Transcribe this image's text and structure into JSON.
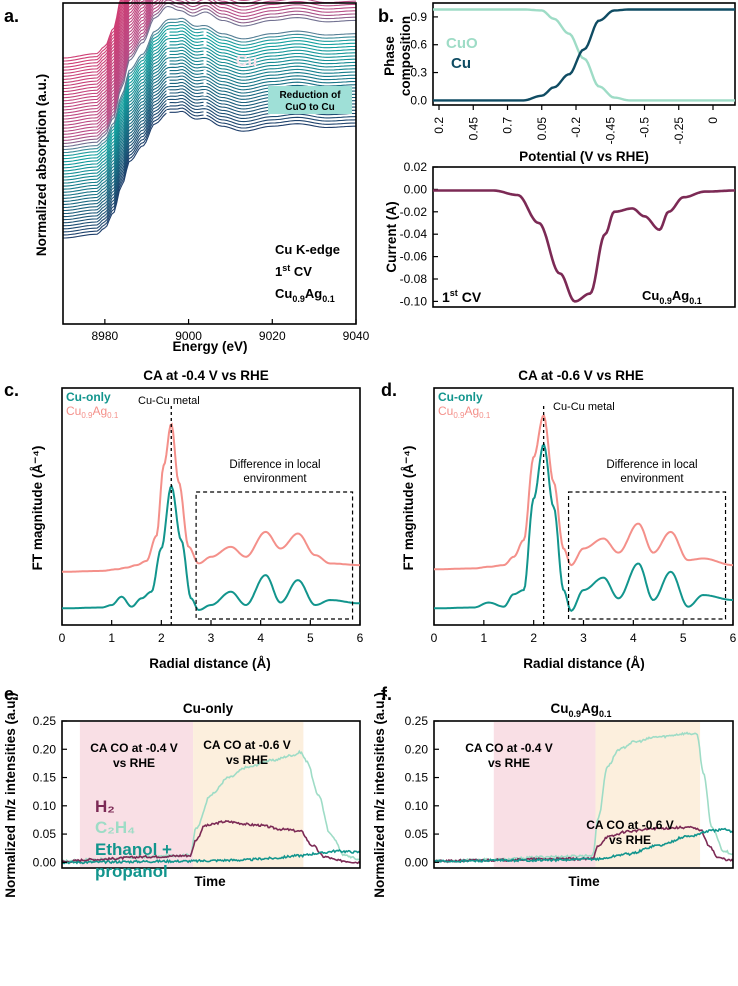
{
  "colors": {
    "teal": "#12958d",
    "navy": "#0f4c63",
    "mint": "#9edcc6",
    "salmon": "#f4908a",
    "maroon": "#7c2a55",
    "pink": "#cf3e74",
    "pinkRegion": "#f9dfe5",
    "orangeRegion": "#fcefdd"
  },
  "panels": {
    "a": {
      "label": "a.",
      "tag_cu": "Cu",
      "tag_cuo": "CuO",
      "box_line1": "Reduction of",
      "box_line2": "CuO to Cu",
      "info1": "Cu K-edge",
      "info2_main": "1",
      "info2_sup": "st",
      "info2_tail": " CV",
      "info3_main": "Cu",
      "info3_sub1": "0.9",
      "info3_mid": "Ag",
      "info3_sub2": "0.1"
    },
    "b": {
      "label": "b.",
      "legend_cuo": "CuO",
      "legend_cu": "Cu",
      "cv_main": "1",
      "cv_sup": "st",
      "cv_tail": " CV",
      "sample_main": "Cu",
      "sample_sub1": "0.9",
      "sample_mid": "Ag",
      "sample_sub2": "0.1"
    },
    "c": {
      "label": "c.",
      "title": "CA at -0.4 V vs RHE",
      "legend_cu": "Cu-only",
      "legend_ag_main": "Cu",
      "legend_ag_sub1": "0.9",
      "legend_ag_mid": "Ag",
      "legend_ag_sub2": "0.1",
      "peak_label": "Cu-Cu metal",
      "box_line1": "Difference in local",
      "box_line2": "environment"
    },
    "d": {
      "label": "d.",
      "title": "CA at -0.6 V vs RHE",
      "legend_cu": "Cu-only",
      "legend_ag_main": "Cu",
      "legend_ag_sub1": "0.9",
      "legend_ag_mid": "Ag",
      "legend_ag_sub2": "0.1",
      "peak_label": "Cu-Cu metal",
      "box_line1": "Difference in local",
      "box_line2": "environment"
    },
    "e": {
      "label": "e.",
      "title": "Cu-only",
      "region1_line1": "CA CO at -0.4 V",
      "region1_line2": "vs RHE",
      "region2_line1": "CA CO at -0.6 V",
      "region2_line2": "vs RHE",
      "legend_h2": "H₂",
      "legend_c2h4": "C₂H₄",
      "legend_eth1": "Ethanol +",
      "legend_eth2": "propanol"
    },
    "f": {
      "label": "f.",
      "title_main": "Cu",
      "title_sub1": "0.9",
      "title_mid": "Ag",
      "title_sub2": "0.1",
      "region1_line1": "CA CO at -0.4 V",
      "region1_line2": "vs RHE",
      "region2_line1": "CA CO at -0.6 V",
      "region2_line2": "vs RHE"
    }
  },
  "chart_data": [
    {
      "panel": "a",
      "type": "line",
      "xlabel": "Energy (eV)",
      "ylabel": "Normalized absorption (a.u.)",
      "xlim": [
        8970,
        9040
      ],
      "x_ticks": [
        8980,
        9000,
        9020,
        9040
      ],
      "y_ticks": [],
      "series_count": 60,
      "description_series": "stacked XANES spectra, color gradient navy to teal (CuO) to pink (Cu)",
      "edge_energy": 8985,
      "dashed_markers": [
        8996,
        8999,
        9003
      ]
    },
    {
      "panel": "b-top",
      "type": "line",
      "ylabel": "Phase composition",
      "ylim": [
        -0.05,
        1.05
      ],
      "y_ticks": [
        0.0,
        0.3,
        0.6,
        0.9
      ],
      "x_tick_labels": [
        "0.2",
        "0.45",
        "0.7",
        "0.05",
        "-0.2",
        "-0.45",
        "-0.5",
        "-0.25",
        "0"
      ],
      "xlabel": "Potential (V vs RHE)",
      "series": [
        {
          "name": "CuO",
          "x": [
            0,
            0.3,
            0.36,
            0.4,
            0.45,
            0.5,
            0.55,
            0.6,
            0.65,
            1
          ],
          "y": [
            0.98,
            0.98,
            0.97,
            0.88,
            0.72,
            0.45,
            0.15,
            0.03,
            0.0,
            0.0
          ]
        },
        {
          "name": "Cu",
          "x": [
            0,
            0.3,
            0.36,
            0.4,
            0.45,
            0.5,
            0.55,
            0.6,
            0.65,
            1
          ],
          "y": [
            0.0,
            0.0,
            0.05,
            0.14,
            0.28,
            0.55,
            0.86,
            0.97,
            0.98,
            0.98
          ]
        }
      ]
    },
    {
      "panel": "b-bottom",
      "type": "line",
      "ylabel": "Current (A)",
      "ylim": [
        -0.105,
        0.02
      ],
      "y_ticks": [
        0.02,
        0.0,
        -0.02,
        -0.04,
        -0.06,
        -0.08,
        -0.1
      ],
      "series": [
        {
          "name": "",
          "x": [
            0,
            0.2,
            0.28,
            0.35,
            0.42,
            0.47,
            0.52,
            0.57,
            0.6,
            0.66,
            0.7,
            0.75,
            0.78,
            0.83,
            0.9,
            1
          ],
          "y": [
            -0.001,
            -0.001,
            -0.005,
            -0.03,
            -0.075,
            -0.1,
            -0.093,
            -0.04,
            -0.02,
            -0.017,
            -0.024,
            -0.036,
            -0.02,
            -0.007,
            -0.002,
            -0.001
          ]
        }
      ]
    },
    {
      "panel": "c",
      "type": "line",
      "title": "CA at -0.4 V vs RHE",
      "xlabel": "Radial distance (Å)",
      "ylabel": "FT magnitude (Å⁻⁴)",
      "xlim": [
        0,
        6
      ],
      "x_ticks": [
        0,
        1,
        2,
        3,
        4,
        5,
        6
      ],
      "peak_x": 2.2,
      "box_x": [
        2.7,
        5.85
      ],
      "series": [
        {
          "name": "Cu-only",
          "x": [
            0,
            0.8,
            1.0,
            1.2,
            1.4,
            1.6,
            1.8,
            2.0,
            2.2,
            2.4,
            2.6,
            2.75,
            3.0,
            3.4,
            3.7,
            4.1,
            4.4,
            4.75,
            5.1,
            5.4,
            6.0
          ],
          "y": [
            0.08,
            0.09,
            0.12,
            0.22,
            0.1,
            0.2,
            0.28,
            0.8,
            1.55,
            0.9,
            0.2,
            0.06,
            0.12,
            0.28,
            0.12,
            0.48,
            0.15,
            0.42,
            0.12,
            0.18,
            0.14
          ]
        },
        {
          "name": "Cu0.9Ag0.1",
          "x": [
            0,
            0.8,
            1.1,
            1.3,
            1.5,
            1.7,
            1.9,
            2.05,
            2.2,
            2.35,
            2.55,
            2.75,
            3.0,
            3.4,
            3.7,
            4.1,
            4.4,
            4.75,
            5.1,
            5.4,
            6.0
          ],
          "y": [
            0.52,
            0.53,
            0.55,
            0.57,
            0.6,
            0.65,
            0.95,
            1.8,
            2.3,
            1.6,
            0.82,
            0.62,
            0.7,
            0.82,
            0.7,
            1.0,
            0.8,
            0.98,
            0.72,
            0.62,
            0.6
          ]
        }
      ]
    },
    {
      "panel": "d",
      "type": "line",
      "title": "CA at -0.6 V vs RHE",
      "xlabel": "Radial distance (Å)",
      "ylabel": "FT magnitude (Å⁻⁴)",
      "xlim": [
        0,
        6
      ],
      "x_ticks": [
        0,
        1,
        2,
        3,
        4,
        5,
        6
      ],
      "peak_x": 2.2,
      "box_x": [
        2.7,
        5.85
      ],
      "series": [
        {
          "name": "Cu-only",
          "x": [
            0,
            0.8,
            1.1,
            1.4,
            1.6,
            1.8,
            2.0,
            2.2,
            2.4,
            2.6,
            2.75,
            3.0,
            3.4,
            3.7,
            4.1,
            4.4,
            4.75,
            5.1,
            5.4,
            6.0
          ],
          "y": [
            0.08,
            0.09,
            0.15,
            0.1,
            0.25,
            0.3,
            1.4,
            2.05,
            1.3,
            0.3,
            0.05,
            0.3,
            0.45,
            0.2,
            0.62,
            0.18,
            0.52,
            0.1,
            0.24,
            0.18
          ]
        },
        {
          "name": "Cu0.9Ag0.1",
          "x": [
            0,
            0.8,
            1.1,
            1.4,
            1.6,
            1.8,
            2.0,
            2.2,
            2.4,
            2.6,
            2.75,
            3.0,
            3.4,
            3.7,
            4.1,
            4.4,
            4.75,
            5.1,
            5.4,
            6.0
          ],
          "y": [
            0.55,
            0.56,
            0.58,
            0.6,
            0.7,
            0.9,
            1.9,
            2.4,
            1.6,
            0.8,
            0.6,
            0.8,
            0.92,
            0.75,
            1.1,
            0.75,
            1.0,
            0.66,
            0.68,
            0.6
          ]
        }
      ]
    },
    {
      "panel": "e",
      "type": "line",
      "title": "Cu-only",
      "xlabel": "Time",
      "ylabel": "Normalized m/z intensities (a.u.)",
      "ylim": [
        -0.01,
        0.25
      ],
      "y_ticks": [
        0.0,
        0.05,
        0.1,
        0.15,
        0.2,
        0.25
      ],
      "regions": [
        [
          0.06,
          0.44
        ],
        [
          0.44,
          0.81
        ]
      ],
      "series": [
        {
          "name": "H₂",
          "x": [
            0,
            0.1,
            0.3,
            0.43,
            0.45,
            0.48,
            0.55,
            0.65,
            0.75,
            0.8,
            0.84,
            0.88,
            0.93,
            1
          ],
          "y": [
            0.001,
            0.005,
            0.01,
            0.012,
            0.04,
            0.065,
            0.072,
            0.066,
            0.058,
            0.055,
            0.03,
            0.01,
            0.003,
            0.0
          ]
        },
        {
          "name": "C₂H₄",
          "x": [
            0,
            0.1,
            0.3,
            0.43,
            0.45,
            0.5,
            0.56,
            0.62,
            0.7,
            0.78,
            0.8,
            0.82,
            0.86,
            0.9,
            0.95,
            1
          ],
          "y": [
            0.002,
            0.005,
            0.01,
            0.013,
            0.06,
            0.12,
            0.15,
            0.168,
            0.18,
            0.19,
            0.195,
            0.18,
            0.12,
            0.05,
            0.012,
            0.005
          ]
        },
        {
          "name": "Ethanol + propanol",
          "x": [
            0,
            0.4,
            0.6,
            0.7,
            0.8,
            0.86,
            0.92,
            1
          ],
          "y": [
            0.0,
            0.002,
            0.004,
            0.007,
            0.012,
            0.016,
            0.02,
            0.018
          ]
        }
      ]
    },
    {
      "panel": "f",
      "type": "line",
      "title": "Cu0.9Ag0.1",
      "xlabel": "Time",
      "ylabel": "Normalized m/z intensities (a.u.)",
      "ylim": [
        -0.01,
        0.25
      ],
      "y_ticks": [
        0.0,
        0.05,
        0.1,
        0.15,
        0.2,
        0.25
      ],
      "regions": [
        [
          0.2,
          0.54
        ],
        [
          0.54,
          0.89
        ]
      ],
      "series": [
        {
          "name": "H₂",
          "x": [
            0,
            0.2,
            0.4,
            0.53,
            0.55,
            0.58,
            0.65,
            0.75,
            0.85,
            0.89,
            0.92,
            0.95,
            1
          ],
          "y": [
            0.002,
            0.004,
            0.006,
            0.006,
            0.03,
            0.045,
            0.055,
            0.06,
            0.062,
            0.058,
            0.03,
            0.008,
            0.003
          ]
        },
        {
          "name": "C₂H₄",
          "x": [
            0,
            0.2,
            0.4,
            0.53,
            0.55,
            0.58,
            0.62,
            0.67,
            0.75,
            0.85,
            0.88,
            0.9,
            0.93,
            0.97,
            1
          ],
          "y": [
            0.002,
            0.005,
            0.01,
            0.012,
            0.08,
            0.17,
            0.2,
            0.213,
            0.222,
            0.228,
            0.226,
            0.16,
            0.06,
            0.02,
            0.015
          ]
        },
        {
          "name": "Ethanol + propanol",
          "x": [
            0,
            0.4,
            0.55,
            0.65,
            0.75,
            0.85,
            0.93,
            0.97,
            1
          ],
          "y": [
            0.002,
            0.004,
            0.006,
            0.015,
            0.03,
            0.046,
            0.056,
            0.058,
            0.054
          ]
        }
      ]
    }
  ]
}
